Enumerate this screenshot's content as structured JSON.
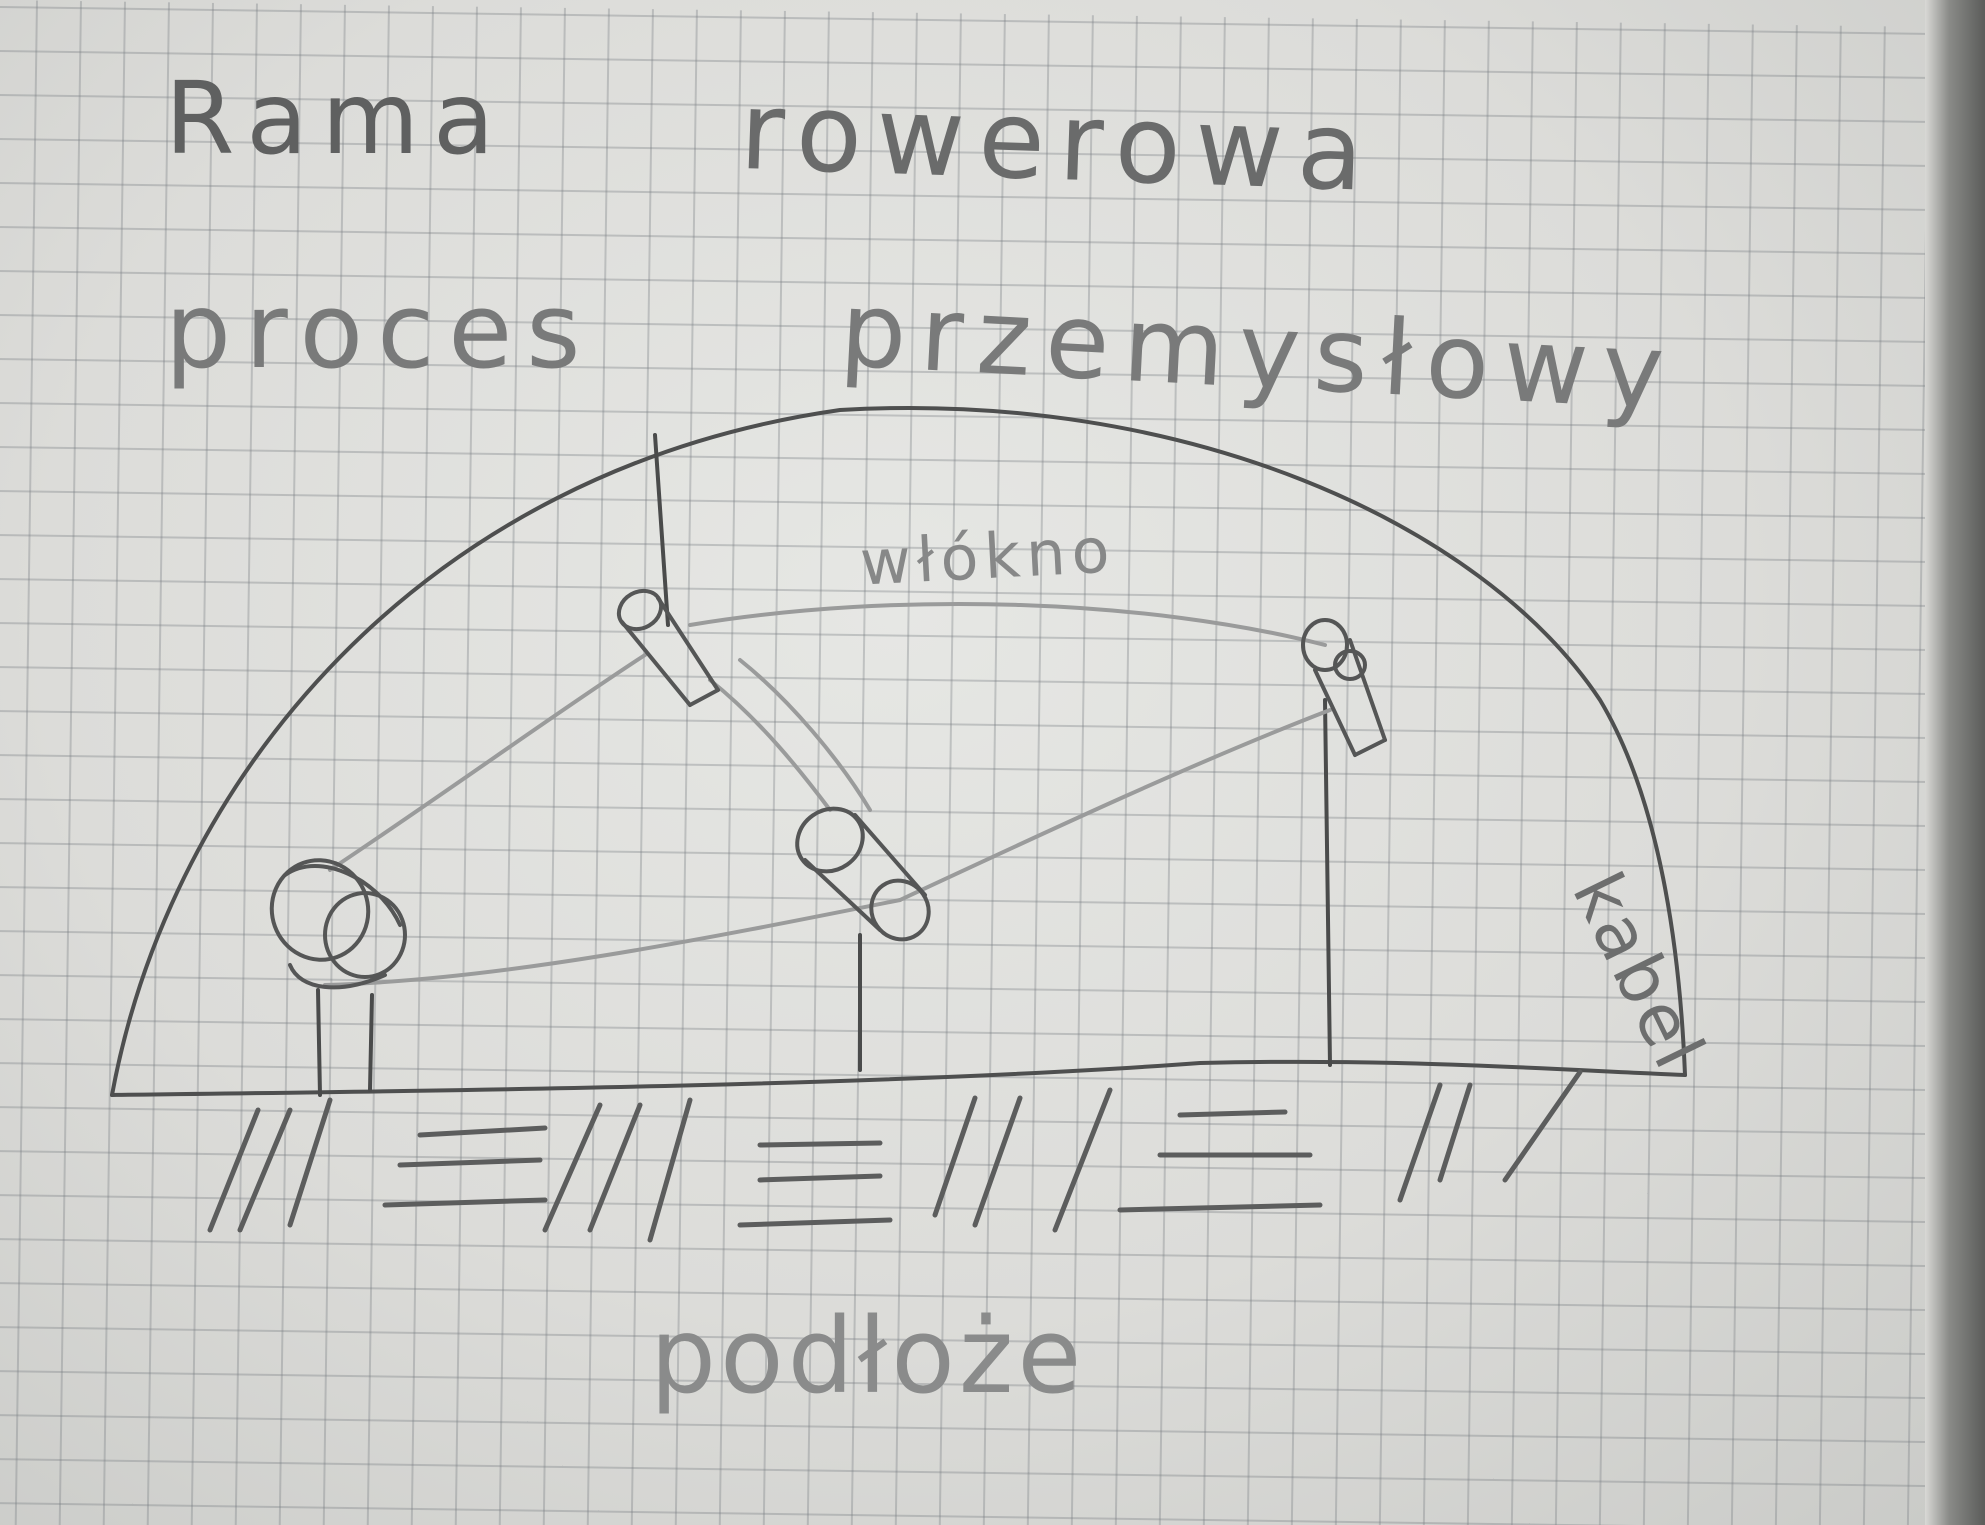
{
  "notebook_page": {
    "title_line_1": "Rama",
    "title_line_2": "rowerowa",
    "subtitle_line_1": "proces",
    "subtitle_line_2": "przemysłowy",
    "diagram_labels": {
      "chain": "włókno",
      "cable": "kabel",
      "ground": "podłoże"
    }
  }
}
